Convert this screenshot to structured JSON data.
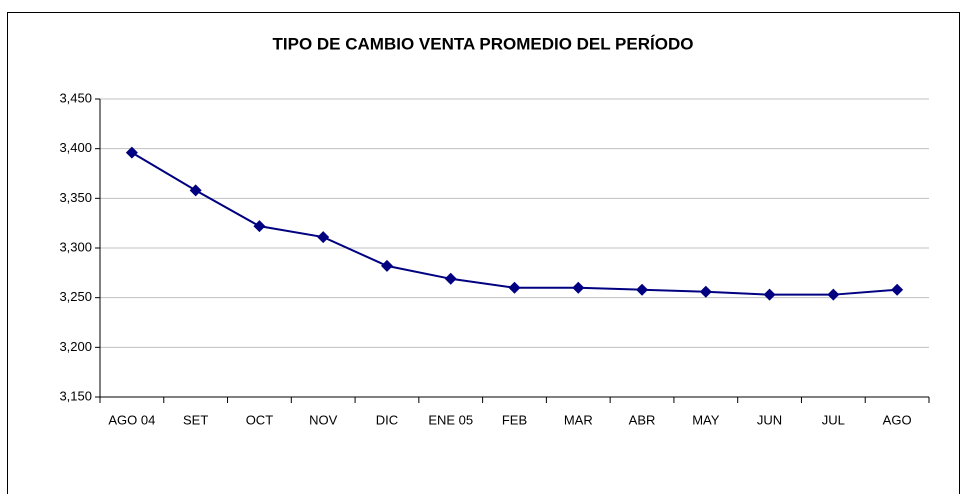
{
  "chart_data": {
    "type": "line",
    "title": "TIPO DE CAMBIO VENTA PROMEDIO DEL PERÍODO",
    "categories": [
      "AGO 04",
      "SET",
      "OCT",
      "NOV",
      "DIC",
      "ENE 05",
      "FEB",
      "MAR",
      "ABR",
      "MAY",
      "JUN",
      "JUL",
      "AGO"
    ],
    "series": [
      {
        "color": "#000080",
        "values": [
          3.396,
          3.358,
          3.322,
          3.311,
          3.282,
          3.269,
          3.26,
          3.26,
          3.258,
          3.256,
          3.253,
          3.253,
          3.258
        ]
      }
    ],
    "ylim": [
      3.15,
      3.45
    ],
    "yticks": [
      {
        "value": 3.15,
        "label": "3,150"
      },
      {
        "value": 3.2,
        "label": "3,200"
      },
      {
        "value": 3.25,
        "label": "3,250"
      },
      {
        "value": 3.3,
        "label": "3,300"
      },
      {
        "value": 3.35,
        "label": "3,350"
      },
      {
        "value": 3.4,
        "label": "3,400"
      },
      {
        "value": 3.45,
        "label": "3,450"
      }
    ],
    "grid": true
  }
}
